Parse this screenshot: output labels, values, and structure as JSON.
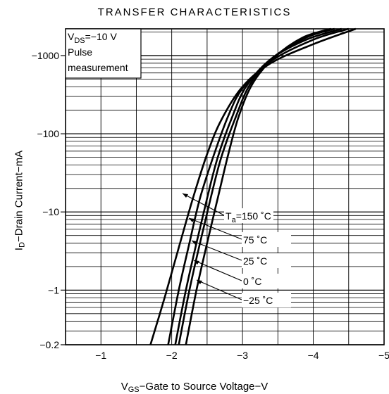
{
  "chart_data": {
    "type": "line",
    "title": "TRANSFER CHARACTERISTICS",
    "xlabel": {
      "main": "V",
      "sub": "GS",
      "rest": "−Gate to Source Voltage−V"
    },
    "ylabel": {
      "main": "I",
      "sub": "D",
      "rest": "−Drain Current−mA"
    },
    "xlim": [
      -0.5,
      -5
    ],
    "ylim": [
      -0.2,
      -2200
    ],
    "yscale": "log",
    "grid": true,
    "x_ticks": [
      {
        "value": -1,
        "label": "−1"
      },
      {
        "value": -2,
        "label": "−2"
      },
      {
        "value": -3,
        "label": "−3"
      },
      {
        "value": -4,
        "label": "−4"
      },
      {
        "value": -5,
        "label": "−5"
      }
    ],
    "y_ticks": [
      {
        "value": -0.2,
        "label": "−0.2"
      },
      {
        "value": -1,
        "label": "−1"
      },
      {
        "value": -10,
        "label": "−10"
      },
      {
        "value": -100,
        "label": "−100"
      },
      {
        "value": -1000,
        "label": "−1000"
      }
    ],
    "conditions": {
      "line1": {
        "main": "V",
        "sub": "DS",
        "rest": "=−10 V"
      },
      "line2": "Pulse",
      "line3": "measurement"
    },
    "series": [
      {
        "name": "Tₐ=150 ˚C",
        "label": {
          "main": "T",
          "sub": "a",
          "rest": "=150 ˚C"
        },
        "x": [
          -1.7,
          -1.9,
          -2.1,
          -2.3,
          -2.5,
          -2.7,
          -3.0,
          -3.4,
          -4.0,
          -4.6
        ],
        "y": [
          -0.2,
          -0.8,
          -3.5,
          -15,
          -55,
          -150,
          -400,
          -800,
          -1400,
          -2200
        ]
      },
      {
        "name": "75 ˚C",
        "label": {
          "main": "75 ˚C"
        },
        "x": [
          -1.95,
          -2.1,
          -2.25,
          -2.4,
          -2.6,
          -2.8,
          -3.0,
          -3.4,
          -4.0,
          -4.5
        ],
        "y": [
          -0.2,
          -1,
          -4,
          -15,
          -55,
          -170,
          -380,
          -850,
          -1600,
          -2200
        ]
      },
      {
        "name": "25 ˚C",
        "label": {
          "main": "25 ˚C"
        },
        "x": [
          -2.05,
          -2.2,
          -2.35,
          -2.5,
          -2.65,
          -2.85,
          -3.05,
          -3.4,
          -3.9,
          -4.4
        ],
        "y": [
          -0.2,
          -1,
          -4,
          -15,
          -50,
          -160,
          -400,
          -900,
          -1600,
          -2200
        ]
      },
      {
        "name": "0 ˚C",
        "label": {
          "main": "0 ˚C"
        },
        "x": [
          -2.1,
          -2.25,
          -2.4,
          -2.55,
          -2.7,
          -2.9,
          -3.1,
          -3.4,
          -3.9,
          -4.3
        ],
        "y": [
          -0.2,
          -1,
          -4,
          -15,
          -50,
          -160,
          -420,
          -900,
          -1700,
          -2200
        ]
      },
      {
        "name": "−25 ˚C",
        "label": {
          "main": "−25 ˚C"
        },
        "x": [
          -2.2,
          -2.35,
          -2.5,
          -2.65,
          -2.8,
          -2.95,
          -3.15,
          -3.45,
          -3.85,
          -4.25
        ],
        "y": [
          -0.2,
          -1,
          -4,
          -15,
          -55,
          -170,
          -450,
          -950,
          -1700,
          -2200
        ]
      }
    ]
  }
}
